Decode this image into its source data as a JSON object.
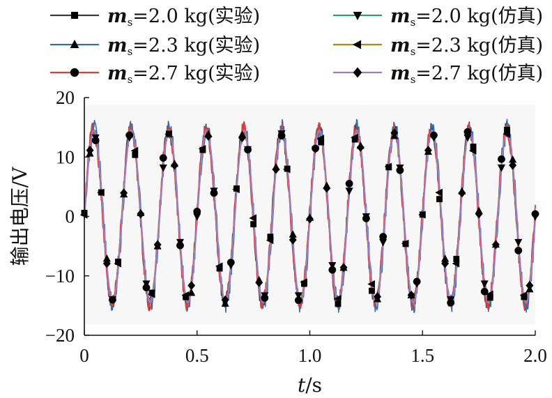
{
  "chart_data": {
    "type": "line",
    "xlabel_var": "t",
    "xlabel_unit": "/s",
    "ylabel": "输出电压/V",
    "xlim": [
      0,
      2.0
    ],
    "ylim": [
      -20,
      20
    ],
    "xticks": [
      0,
      0.5,
      1.0,
      1.5,
      2.0
    ],
    "xtick_labels": [
      "0",
      "0.5",
      "1.0",
      "1.5",
      "2.0"
    ],
    "yticks": [
      -20,
      -10,
      0,
      10,
      20
    ],
    "ytick_labels": [
      "−20",
      "−10",
      "0",
      "10",
      "20"
    ],
    "grid": false,
    "plot_background": "#f7f7f7",
    "legend_position": "top",
    "signal": {
      "frequency_hz": 6,
      "amplitude_v": 14.5,
      "marker_sample_interval_s": 0.025
    },
    "series": [
      {
        "name_var": "m",
        "name_sub": "s",
        "name_rest": "=2.0 kg(实验)",
        "color": "#3a3a3a",
        "marker": "square",
        "kind": "experiment",
        "amplitude_v": 14.6,
        "phase_rad": 0.05,
        "noise_v": 1.4
      },
      {
        "name_var": "m",
        "name_sub": "s",
        "name_rest": "=2.0 kg(仿真)",
        "color": "#2e9e6a",
        "marker": "triangle-down",
        "kind": "simulation",
        "amplitude_v": 14.4,
        "phase_rad": 0.0,
        "noise_v": 0.0
      },
      {
        "name_var": "m",
        "name_sub": "s",
        "name_rest": "=2.3 kg(实验)",
        "color": "#2f6fb0",
        "marker": "triangle-up",
        "kind": "experiment",
        "amplitude_v": 14.8,
        "phase_rad": -0.06,
        "noise_v": 1.6
      },
      {
        "name_var": "m",
        "name_sub": "s",
        "name_rest": "=2.3 kg(仿真)",
        "color": "#b8860b",
        "marker": "triangle-left",
        "kind": "simulation",
        "amplitude_v": 14.3,
        "phase_rad": 0.02,
        "noise_v": 0.0
      },
      {
        "name_var": "m",
        "name_sub": "s",
        "name_rest": "=2.7 kg(实验)",
        "color": "#d9403a",
        "marker": "circle",
        "kind": "experiment",
        "amplitude_v": 14.7,
        "phase_rad": 0.08,
        "noise_v": 1.3
      },
      {
        "name_var": "m",
        "name_sub": "s",
        "name_rest": "=2.7 kg(仿真)",
        "color": "#9a7fc0",
        "marker": "diamond",
        "kind": "simulation",
        "amplitude_v": 14.5,
        "phase_rad": -0.03,
        "noise_v": 0.0
      }
    ]
  }
}
